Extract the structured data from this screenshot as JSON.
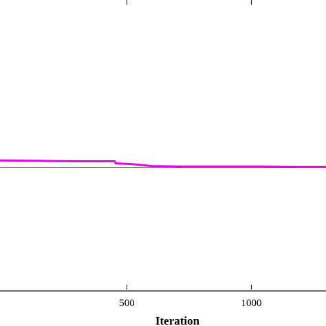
{
  "chart_data": {
    "type": "line",
    "xlabel": "Iteration",
    "xlim": [
      -10,
      1300
    ],
    "ylim": [
      0,
      1
    ],
    "x_ticks": [
      500,
      1000
    ],
    "x_tick_labels": [
      "500",
      "1000"
    ],
    "grid": false,
    "series": [
      {
        "color": "#e600e6",
        "x": [
          -10,
          100,
          200,
          300,
          400,
          450,
          455,
          500,
          550,
          600,
          700,
          800,
          1000,
          1200,
          1300
        ],
        "y": [
          0.446,
          0.445,
          0.444,
          0.443,
          0.443,
          0.443,
          0.436,
          0.434,
          0.431,
          0.426,
          0.425,
          0.425,
          0.425,
          0.424,
          0.424
        ]
      },
      {
        "color": "#6a6af0",
        "x": [
          -10,
          1300
        ],
        "y": [
          0.422,
          0.421
        ]
      }
    ]
  }
}
